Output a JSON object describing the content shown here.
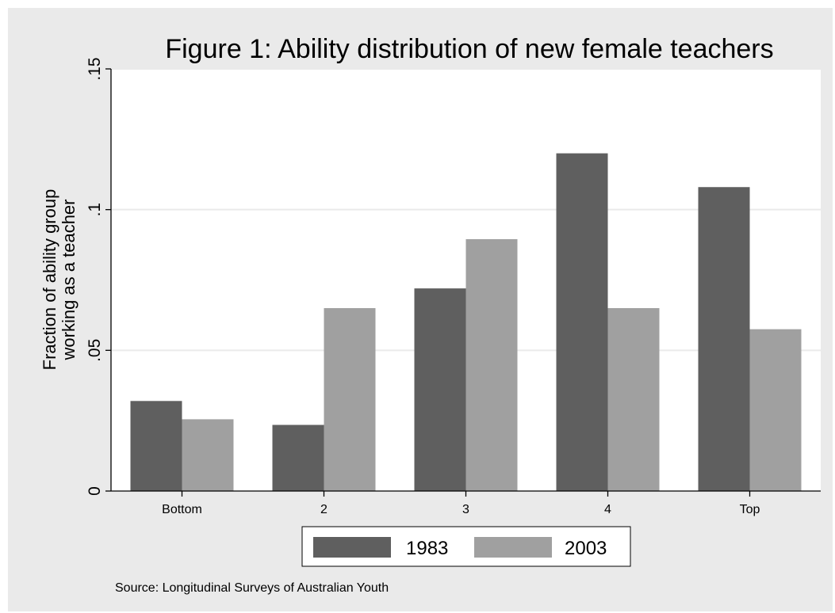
{
  "chart_data": {
    "type": "bar",
    "title": "Figure 1: Ability distribution of new female teachers",
    "ylabel_lines": [
      "Fraction of ability group",
      "working as a teacher"
    ],
    "xlabel": "",
    "categories": [
      "Bottom",
      "2",
      "3",
      "4",
      "Top"
    ],
    "series": [
      {
        "name": "1983",
        "color": "#5f5f5f",
        "values": [
          0.032,
          0.0235,
          0.072,
          0.12,
          0.108
        ]
      },
      {
        "name": "2003",
        "color": "#a0a0a0",
        "values": [
          0.0255,
          0.065,
          0.0895,
          0.065,
          0.0575
        ]
      }
    ],
    "ylim": [
      0,
      0.15
    ],
    "yticks": [
      {
        "value": 0,
        "label": "0"
      },
      {
        "value": 0.05,
        "label": ".05"
      },
      {
        "value": 0.1,
        "label": ".1"
      },
      {
        "value": 0.15,
        "label": ".15"
      }
    ],
    "grid": true,
    "legend_position": "bottom-center",
    "note": "Source: Longitudinal Surveys of Australian Youth",
    "background_color": "#eaeaea",
    "plot_background_color": "#ffffff",
    "grid_color": "#eaeaea"
  }
}
